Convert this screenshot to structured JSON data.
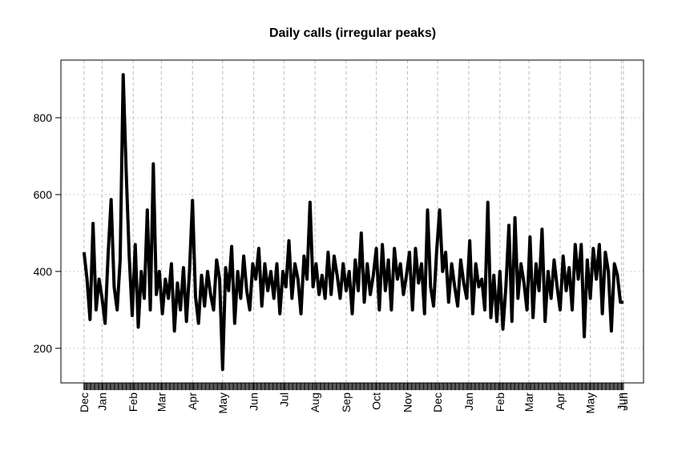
{
  "chart_data": {
    "type": "line",
    "title": "Daily calls (irregular peaks)",
    "x": [
      -18,
      -15,
      -12,
      -9,
      -6,
      -3,
      0,
      3,
      6,
      9,
      12,
      15,
      18,
      21,
      24,
      27,
      30,
      33,
      36,
      39,
      42,
      45,
      48,
      51,
      54,
      57,
      60,
      63,
      66,
      69,
      72,
      75,
      78,
      81,
      84,
      87,
      90,
      93,
      96,
      99,
      102,
      105,
      108,
      111,
      114,
      117,
      120,
      123,
      126,
      129,
      132,
      135,
      138,
      141,
      144,
      147,
      150,
      153,
      156,
      159,
      162,
      165,
      168,
      171,
      174,
      177,
      180,
      183,
      186,
      189,
      192,
      195,
      198,
      201,
      204,
      207,
      210,
      213,
      216,
      219,
      222,
      225,
      228,
      231,
      234,
      237,
      240,
      243,
      246,
      249,
      252,
      255,
      258,
      261,
      264,
      267,
      270,
      273,
      276,
      279,
      282,
      285,
      288,
      291,
      294,
      297,
      300,
      303,
      306,
      309,
      312,
      315,
      318,
      321,
      324,
      327,
      330,
      333,
      336,
      339,
      342,
      345,
      348,
      351,
      354,
      357,
      360,
      363,
      366,
      369,
      372,
      375,
      378,
      381,
      384,
      387,
      390,
      393,
      396,
      399,
      402,
      405,
      408,
      411,
      414,
      417,
      420,
      423,
      426,
      429,
      432,
      435,
      438,
      441,
      444,
      447,
      450,
      453,
      456,
      459,
      462,
      465,
      468,
      471,
      474,
      477,
      480,
      483,
      486,
      489,
      492,
      495,
      498,
      501,
      504,
      507,
      510,
      513,
      516,
      519
    ],
    "series": [
      {
        "color": "#000000",
        "values": [
          450,
          380,
          275,
          525,
          300,
          380,
          330,
          265,
          445,
          587,
          360,
          300,
          430,
          912,
          660,
          440,
          285,
          470,
          255,
          400,
          330,
          560,
          300,
          680,
          340,
          400,
          290,
          380,
          330,
          420,
          245,
          370,
          300,
          410,
          270,
          400,
          585,
          335,
          265,
          390,
          310,
          400,
          340,
          300,
          430,
          380,
          145,
          410,
          350,
          465,
          265,
          400,
          330,
          440,
          350,
          300,
          420,
          380,
          460,
          310,
          420,
          350,
          400,
          330,
          420,
          290,
          400,
          360,
          480,
          330,
          420,
          380,
          290,
          440,
          380,
          580,
          360,
          420,
          340,
          390,
          330,
          450,
          340,
          440,
          390,
          330,
          420,
          350,
          400,
          290,
          430,
          350,
          500,
          320,
          420,
          340,
          390,
          460,
          300,
          470,
          350,
          430,
          300,
          460,
          380,
          420,
          340,
          390,
          450,
          300,
          460,
          370,
          420,
          290,
          560,
          360,
          310,
          450,
          560,
          400,
          450,
          320,
          420,
          360,
          310,
          430,
          370,
          330,
          480,
          290,
          420,
          360,
          380,
          300,
          580,
          280,
          390,
          270,
          400,
          250,
          360,
          520,
          270,
          540,
          330,
          420,
          370,
          300,
          490,
          280,
          420,
          350,
          510,
          270,
          400,
          330,
          430,
          360,
          300,
          440,
          350,
          410,
          300,
          470,
          380,
          470,
          230,
          430,
          330,
          460,
          380,
          470,
          290,
          450,
          400,
          245,
          420,
          390,
          320,
          320
        ]
      }
    ],
    "xlim": [
      -41,
      539
    ],
    "ylim": [
      110,
      950
    ],
    "xticks": [
      {
        "value": -18,
        "label": "Dec"
      },
      {
        "value": 0,
        "label": "Jan"
      },
      {
        "value": 31,
        "label": "Feb"
      },
      {
        "value": 59,
        "label": "Mar"
      },
      {
        "value": 90,
        "label": "Apr"
      },
      {
        "value": 120,
        "label": "May"
      },
      {
        "value": 151,
        "label": "Jun"
      },
      {
        "value": 181,
        "label": "Jul"
      },
      {
        "value": 212,
        "label": "Aug"
      },
      {
        "value": 243,
        "label": "Sep"
      },
      {
        "value": 273,
        "label": "Oct"
      },
      {
        "value": 304,
        "label": "Nov"
      },
      {
        "value": 334,
        "label": "Dec"
      },
      {
        "value": 365,
        "label": "Jan"
      },
      {
        "value": 396,
        "label": "Feb"
      },
      {
        "value": 425,
        "label": "Mar"
      },
      {
        "value": 456,
        "label": "Apr"
      },
      {
        "value": 486,
        "label": "May"
      },
      {
        "value": 517,
        "label": "Jun"
      },
      {
        "value": 519,
        "label": "Jun"
      }
    ],
    "yticks": [
      200,
      400,
      600,
      800
    ],
    "grid": true
  }
}
